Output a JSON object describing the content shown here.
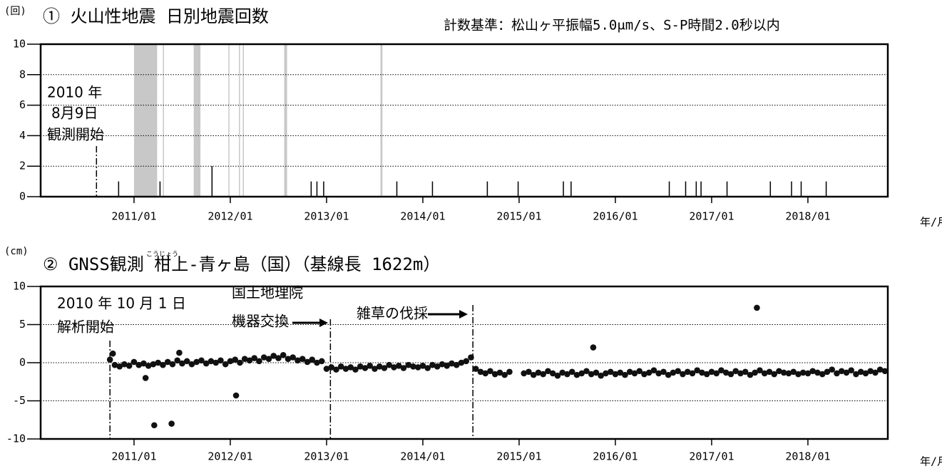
{
  "chart_data": [
    {
      "type": "bar",
      "title": "① 火山性地震 日別地震回数",
      "note": "計数基準：松山ヶ平振幅5.0μm/s、S-P時間2.0秒以内",
      "y_unit": "(回)",
      "x_unit": "年/月",
      "color": "#000000",
      "shade_color": "#c8c8c8",
      "grid": true,
      "xlim": [
        2010.03,
        2018.83
      ],
      "ylim": [
        0,
        10
      ],
      "yticks": [
        0,
        2,
        4,
        6,
        8,
        10
      ],
      "xticks": [
        {
          "value": 2011,
          "label": "2011/01"
        },
        {
          "value": 2012,
          "label": "2012/01"
        },
        {
          "value": 2013,
          "label": "2013/01"
        },
        {
          "value": 2014,
          "label": "2014/01"
        },
        {
          "value": 2015,
          "label": "2015/01"
        },
        {
          "value": 2016,
          "label": "2016/01"
        },
        {
          "value": 2017,
          "label": "2017/01"
        },
        {
          "value": 2018,
          "label": "2018/01"
        }
      ],
      "x": [
        2010.84,
        2011.27,
        2011.81,
        2012.84,
        2012.9,
        2012.97,
        2013.73,
        2014.1,
        2014.67,
        2014.99,
        2015.46,
        2015.54,
        2016.56,
        2016.73,
        2016.84,
        2016.89,
        2017.16,
        2017.61,
        2017.83,
        2017.93,
        2018.19
      ],
      "values": [
        1,
        1,
        2,
        1,
        1,
        1,
        1,
        1,
        1,
        1,
        1,
        1,
        1,
        1,
        1,
        1,
        1,
        1,
        1,
        1,
        1
      ],
      "shaded_ranges": [
        [
          2011.0,
          2011.24
        ],
        [
          2011.3,
          2011.31
        ],
        [
          2011.62,
          2011.69
        ],
        [
          2011.98,
          2011.99
        ],
        [
          2012.09,
          2012.1
        ],
        [
          2012.13,
          2012.14
        ],
        [
          2012.56,
          2012.59
        ],
        [
          2013.56,
          2013.58
        ]
      ],
      "annotations": [
        {
          "lines": [
            "2010 年",
            "8月9日",
            "観測開始"
          ],
          "x": 2010.61
        }
      ]
    },
    {
      "type": "scatter",
      "title": "② GNSS観測 柑上-青ヶ島（国）（基線長 1622m）",
      "title_reading": "こうじょう",
      "y_unit": "(cm)",
      "x_unit": "年/月",
      "color": "#111111",
      "grid": true,
      "xlim": [
        2010.03,
        2018.83
      ],
      "ylim": [
        -10,
        10
      ],
      "yticks": [
        -10,
        -5,
        0,
        5,
        10
      ],
      "xticks": [
        {
          "value": 2011,
          "label": "2011/01"
        },
        {
          "value": 2012,
          "label": "2012/01"
        },
        {
          "value": 2013,
          "label": "2013/01"
        },
        {
          "value": 2014,
          "label": "2014/01"
        },
        {
          "value": 2015,
          "label": "2015/01"
        },
        {
          "value": 2016,
          "label": "2016/01"
        },
        {
          "value": 2017,
          "label": "2017/01"
        },
        {
          "value": 2018,
          "label": "2018/01"
        }
      ],
      "x": [
        2010.75,
        2010.8,
        2010.85,
        2010.9,
        2010.95,
        2011.0,
        2011.05,
        2011.1,
        2011.15,
        2011.2,
        2011.25,
        2011.3,
        2011.35,
        2011.4,
        2011.45,
        2011.5,
        2011.55,
        2011.6,
        2011.65,
        2011.7,
        2011.75,
        2011.8,
        2011.85,
        2011.9,
        2011.95,
        2012.0,
        2012.05,
        2012.1,
        2012.15,
        2012.2,
        2012.25,
        2012.3,
        2012.35,
        2012.4,
        2012.45,
        2012.5,
        2012.55,
        2012.6,
        2012.65,
        2012.7,
        2012.75,
        2012.8,
        2012.85,
        2012.9,
        2012.95,
        2013.0,
        2013.05,
        2013.1,
        2013.15,
        2013.2,
        2013.25,
        2013.3,
        2013.35,
        2013.4,
        2013.45,
        2013.5,
        2013.55,
        2013.6,
        2013.65,
        2013.7,
        2013.75,
        2013.8,
        2013.85,
        2013.9,
        2013.95,
        2014.0,
        2014.05,
        2014.1,
        2014.15,
        2014.2,
        2014.25,
        2014.3,
        2014.35,
        2014.4,
        2014.45,
        2014.5,
        2014.55,
        2014.6,
        2014.65,
        2014.7,
        2014.75,
        2014.8,
        2014.85,
        2014.9,
        2015.05,
        2015.1,
        2015.15,
        2015.2,
        2015.25,
        2015.3,
        2015.35,
        2015.4,
        2015.45,
        2015.5,
        2015.55,
        2015.6,
        2015.65,
        2015.7,
        2015.75,
        2015.8,
        2015.85,
        2015.9,
        2015.95,
        2016.0,
        2016.05,
        2016.1,
        2016.15,
        2016.2,
        2016.25,
        2016.3,
        2016.35,
        2016.4,
        2016.45,
        2016.5,
        2016.55,
        2016.6,
        2016.65,
        2016.7,
        2016.75,
        2016.8,
        2016.85,
        2016.9,
        2016.95,
        2017.0,
        2017.05,
        2017.1,
        2017.15,
        2017.2,
        2017.25,
        2017.3,
        2017.35,
        2017.4,
        2017.45,
        2017.5,
        2017.55,
        2017.6,
        2017.65,
        2017.7,
        2017.75,
        2017.8,
        2017.85,
        2017.9,
        2017.95,
        2018.0,
        2018.05,
        2018.1,
        2018.15,
        2018.2,
        2018.25,
        2018.3,
        2018.35,
        2018.4,
        2018.45,
        2018.5,
        2018.55,
        2018.6,
        2018.65,
        2018.7,
        2018.75,
        2018.8,
        2011.12,
        2011.21,
        2011.39,
        2012.06,
        2015.77,
        2017.47,
        2010.78,
        2011.47
      ],
      "values": [
        0.4,
        -0.3,
        -0.5,
        -0.2,
        -0.4,
        0.1,
        -0.3,
        -0.1,
        -0.4,
        -0.2,
        0.0,
        -0.3,
        0.1,
        -0.2,
        0.3,
        -0.1,
        0.2,
        -0.2,
        0.1,
        0.3,
        -0.1,
        0.2,
        0.0,
        0.3,
        -0.2,
        0.2,
        0.4,
        0.0,
        0.5,
        0.3,
        0.6,
        0.2,
        0.7,
        0.5,
        0.9,
        0.6,
        1.0,
        0.5,
        0.7,
        0.3,
        0.5,
        0.1,
        0.4,
        0.0,
        0.2,
        -0.8,
        -0.6,
        -0.9,
        -0.5,
        -0.8,
        -0.6,
        -0.9,
        -0.5,
        -0.7,
        -0.4,
        -0.8,
        -0.5,
        -0.7,
        -0.3,
        -0.6,
        -0.4,
        -0.7,
        -0.3,
        -0.5,
        -0.6,
        -0.4,
        -0.7,
        -0.3,
        -0.5,
        -0.2,
        -0.4,
        -0.1,
        -0.3,
        0.0,
        0.2,
        0.7,
        -0.8,
        -1.2,
        -1.4,
        -1.1,
        -1.5,
        -1.3,
        -1.6,
        -1.2,
        -1.4,
        -1.2,
        -1.6,
        -1.3,
        -1.5,
        -1.1,
        -1.4,
        -1.7,
        -1.3,
        -1.5,
        -1.2,
        -1.6,
        -1.4,
        -1.1,
        -1.5,
        -1.3,
        -1.7,
        -1.4,
        -1.2,
        -1.5,
        -1.3,
        -1.6,
        -1.2,
        -1.4,
        -1.1,
        -1.5,
        -1.3,
        -1.0,
        -1.4,
        -1.2,
        -1.6,
        -1.3,
        -1.1,
        -1.5,
        -1.2,
        -1.4,
        -1.0,
        -1.3,
        -1.5,
        -1.2,
        -1.4,
        -1.0,
        -1.3,
        -1.5,
        -1.1,
        -1.4,
        -1.2,
        -1.6,
        -1.3,
        -1.0,
        -1.4,
        -1.2,
        -1.5,
        -1.1,
        -1.3,
        -1.4,
        -1.2,
        -1.5,
        -1.3,
        -1.4,
        -1.1,
        -1.3,
        -1.5,
        -1.2,
        -0.9,
        -1.4,
        -1.1,
        -1.3,
        -1.0,
        -1.5,
        -1.2,
        -1.4,
        -1.1,
        -1.3,
        -0.9,
        -1.1,
        -2.0,
        -8.2,
        -8.0,
        -4.3,
        2.0,
        7.2,
        1.2,
        1.3
      ],
      "annotations": [
        {
          "lines": [
            "2010 年 10 月 1 日",
            "解析開始"
          ],
          "x": 2010.75
        },
        {
          "lines": [
            "国土地理院",
            "機器交換"
          ],
          "x": 2013.04
        },
        {
          "lines": [
            "雑草の伐採"
          ],
          "x": 2014.52
        }
      ]
    }
  ]
}
